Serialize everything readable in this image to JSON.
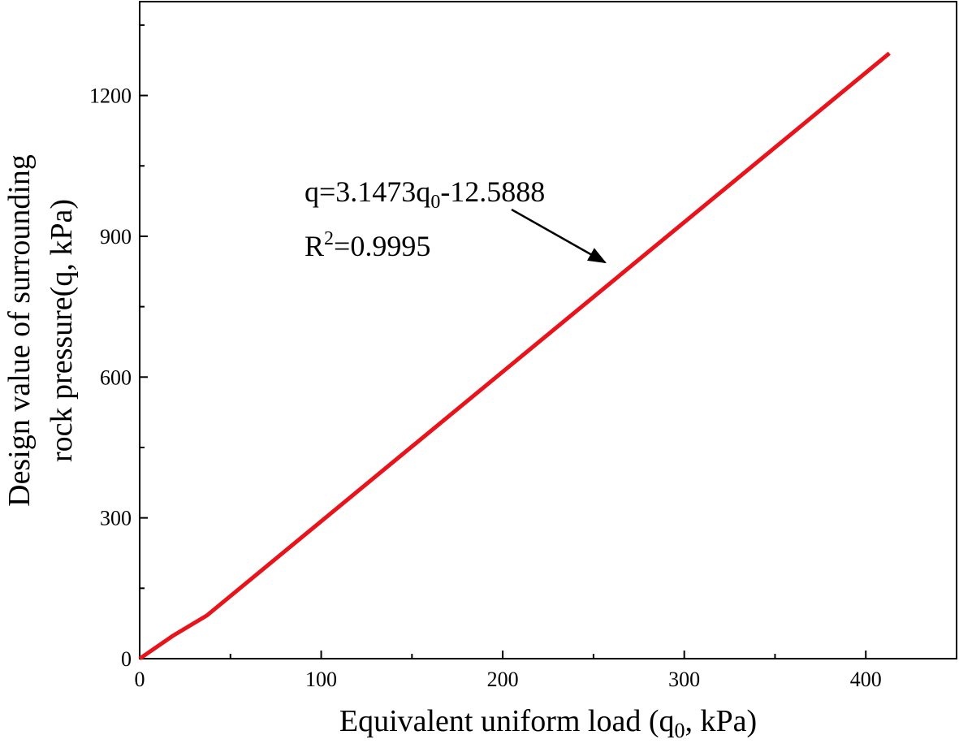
{
  "chart_data": {
    "type": "line",
    "x_label": [
      "Equivalent uniform load (q",
      "0",
      ", kPa)"
    ],
    "y_label": [
      "Design value of surrounding",
      "rock pressure(q, kPa)"
    ],
    "annotation": {
      "equation": [
        "q=3.1473q",
        "0",
        "-12.5888"
      ],
      "r_squared": [
        "R",
        "2",
        "=0.9995"
      ]
    },
    "x": [
      0,
      18,
      37,
      413
    ],
    "series": [
      {
        "color": "#e8141c",
        "values": [
          0,
          48,
          92,
          1290
        ]
      }
    ],
    "xlim": [
      0,
      450
    ],
    "ylim": [
      0,
      1400
    ],
    "xticks": [
      0,
      100,
      200,
      300,
      400
    ],
    "yticks": [
      0,
      300,
      600,
      900,
      1200
    ],
    "xminorticks": [
      50,
      150,
      250,
      350
    ],
    "yminorticks": [
      150,
      450,
      750,
      1050,
      1350
    ]
  }
}
